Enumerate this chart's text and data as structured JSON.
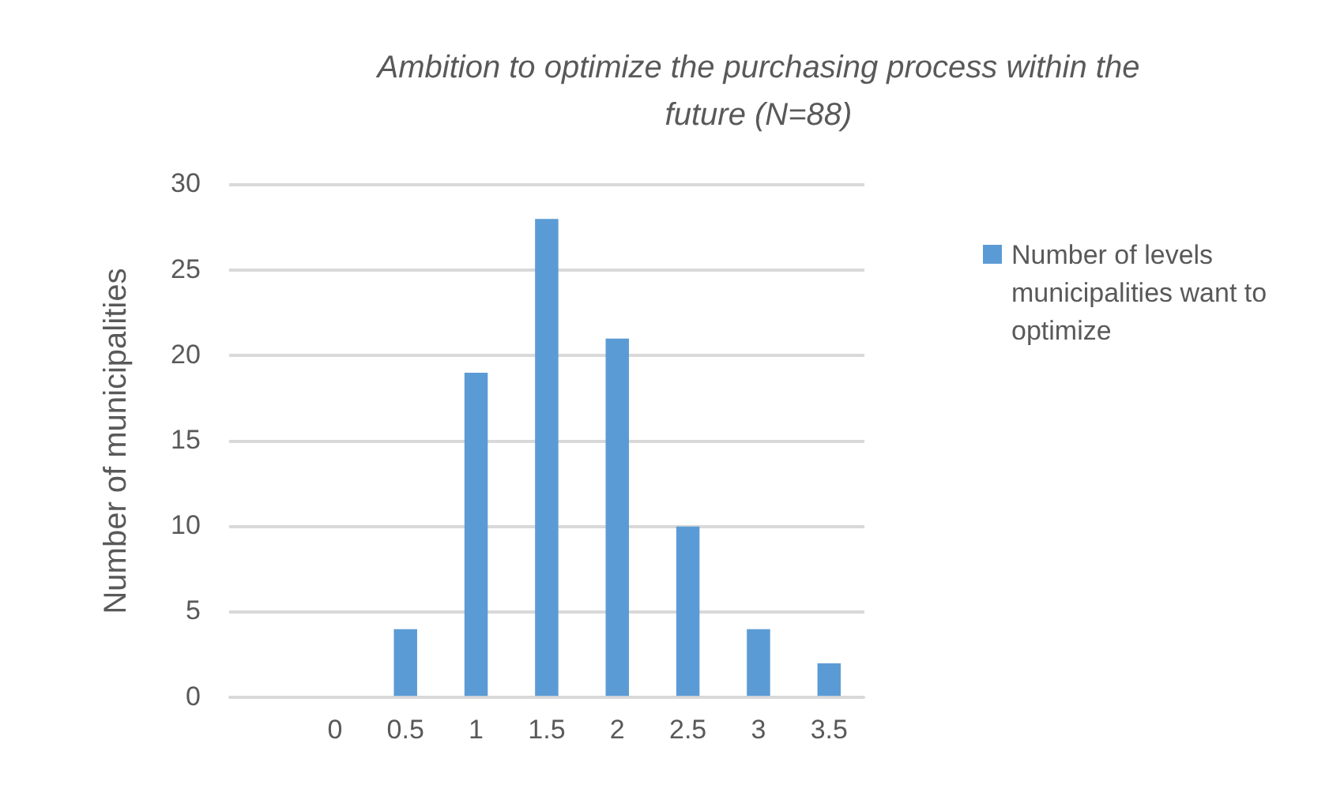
{
  "chart_data": {
    "type": "bar",
    "title": "Ambition to optimize the purchasing process within the future (N=88)",
    "ylabel": "Number of municipalities",
    "categories": [
      null,
      "0",
      "0.5",
      "1",
      "1.5",
      "2",
      "2.5",
      "3",
      "3.5"
    ],
    "series": [
      {
        "name": "Number of levels municipalities want to optimize",
        "color": "#5b9bd5",
        "values": [
          null,
          0,
          4,
          19,
          28,
          21,
          10,
          4,
          2
        ]
      }
    ],
    "ylim": [
      0,
      30
    ],
    "yticks": [
      0,
      5,
      10,
      15,
      20,
      25,
      30
    ],
    "grid": "y",
    "legend": "right"
  }
}
